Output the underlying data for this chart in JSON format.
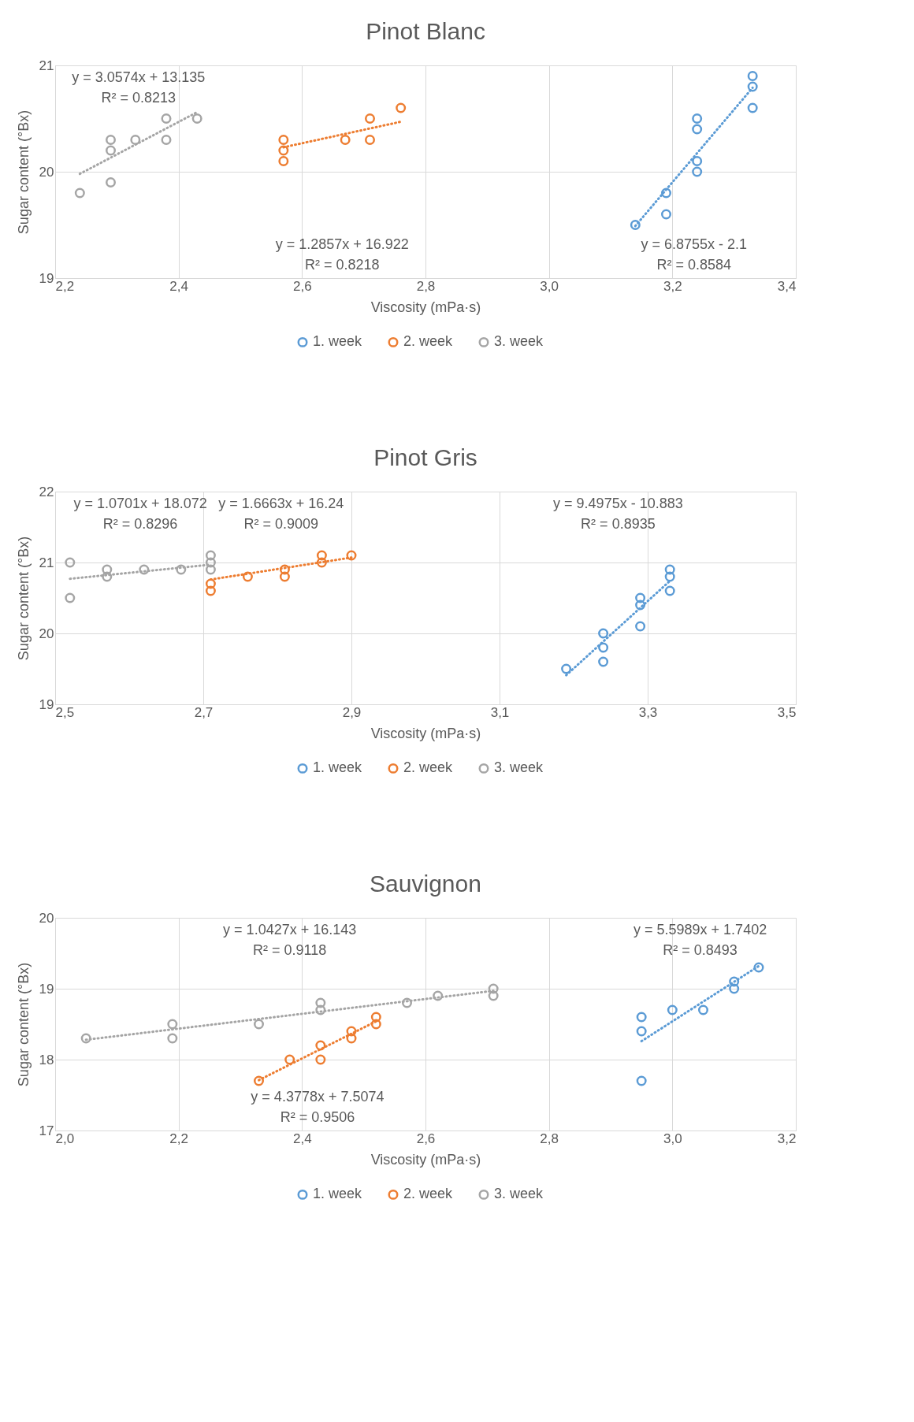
{
  "chart_data": [
    {
      "type": "scatter",
      "title": "Pinot Blanc",
      "xlabel": "Viscosity (mPa·s)",
      "ylabel": "Sugar content (°Bx)",
      "xlim": [
        2.2,
        3.4
      ],
      "ylim": [
        19,
        21
      ],
      "xticks": [
        {
          "value": 2.2,
          "label": "2,2"
        },
        {
          "value": 2.4,
          "label": "2,4"
        },
        {
          "value": 2.6,
          "label": "2,6"
        },
        {
          "value": 2.8,
          "label": "2,8"
        },
        {
          "value": 3.0,
          "label": "3,0"
        },
        {
          "value": 3.2,
          "label": "3,2"
        },
        {
          "value": 3.4,
          "label": "3,4"
        }
      ],
      "yticks": [
        19,
        20,
        21
      ],
      "grid": true,
      "legend": "bottom",
      "marker": "circle",
      "series": [
        {
          "name": "1. week",
          "color": "#5b9bd5",
          "x": [
            3.14,
            3.19,
            3.19,
            3.24,
            3.24,
            3.24,
            3.24,
            3.33,
            3.33,
            3.33
          ],
          "values": [
            19.5,
            19.6,
            19.8,
            20.0,
            20.1,
            20.4,
            20.5,
            20.6,
            20.8,
            20.9
          ]
        },
        {
          "name": "2. week",
          "color": "#ed7d31",
          "x": [
            2.57,
            2.57,
            2.57,
            2.67,
            2.71,
            2.71,
            2.76
          ],
          "values": [
            20.1,
            20.2,
            20.3,
            20.3,
            20.3,
            20.5,
            20.6
          ]
        },
        {
          "name": "3. week",
          "color": "#a5a5a5",
          "x": [
            2.24,
            2.29,
            2.29,
            2.29,
            2.33,
            2.38,
            2.38,
            2.43
          ],
          "values": [
            19.8,
            19.9,
            20.2,
            20.3,
            20.3,
            20.3,
            20.5,
            20.5
          ]
        },
        {
          "type": "line",
          "marker": "none",
          "line_style": "dotted",
          "color": "#a5a5a5",
          "x": [
            2.24,
            2.43
          ],
          "values": [
            19.98,
            20.56
          ]
        },
        {
          "type": "line",
          "marker": "none",
          "line_style": "dotted",
          "color": "#ed7d31",
          "x": [
            2.57,
            2.76
          ],
          "values": [
            20.23,
            20.47
          ]
        },
        {
          "type": "line",
          "marker": "none",
          "line_style": "dotted",
          "color": "#5b9bd5",
          "x": [
            3.14,
            3.33
          ],
          "values": [
            19.49,
            20.79
          ]
        }
      ],
      "annotations": [
        "y = 3.0574x + 13.135",
        "R² = 0.8213",
        "y = 1.2857x + 16.922",
        "R² = 0.8218",
        "y = 6.8755x - 2.1",
        "R² = 0.8584"
      ]
    },
    {
      "type": "scatter",
      "title": "Pinot Gris",
      "xlabel": "Viscosity (mPa·s)",
      "ylabel": "Sugar content (°Bx)",
      "xlim": [
        2.5,
        3.5
      ],
      "ylim": [
        19,
        22
      ],
      "xticks": [
        {
          "value": 2.5,
          "label": "2,5"
        },
        {
          "value": 2.7,
          "label": "2,7"
        },
        {
          "value": 2.9,
          "label": "2,9"
        },
        {
          "value": 3.1,
          "label": "3,1"
        },
        {
          "value": 3.3,
          "label": "3,3"
        },
        {
          "value": 3.5,
          "label": "3,5"
        }
      ],
      "yticks": [
        19,
        20,
        21,
        22
      ],
      "grid": true,
      "legend": "bottom",
      "marker": "circle",
      "series": [
        {
          "name": "1. week",
          "color": "#5b9bd5",
          "x": [
            3.19,
            3.24,
            3.24,
            3.24,
            3.29,
            3.29,
            3.29,
            3.33,
            3.33,
            3.33
          ],
          "values": [
            19.5,
            19.6,
            19.8,
            20.0,
            20.1,
            20.4,
            20.5,
            20.6,
            20.8,
            20.9
          ]
        },
        {
          "name": "2. week",
          "color": "#ed7d31",
          "x": [
            2.71,
            2.71,
            2.76,
            2.81,
            2.81,
            2.86,
            2.86,
            2.9
          ],
          "values": [
            20.6,
            20.7,
            20.8,
            20.8,
            20.9,
            21.0,
            21.1,
            21.1
          ]
        },
        {
          "name": "3. week",
          "color": "#a5a5a5",
          "x": [
            2.52,
            2.52,
            2.57,
            2.57,
            2.62,
            2.67,
            2.71,
            2.71,
            2.71
          ],
          "values": [
            20.5,
            21.0,
            20.8,
            20.9,
            20.9,
            20.9,
            20.9,
            21.0,
            21.1
          ]
        },
        {
          "type": "line",
          "marker": "none",
          "line_style": "dotted",
          "color": "#a5a5a5",
          "x": [
            2.52,
            2.71
          ],
          "values": [
            20.77,
            20.97
          ]
        },
        {
          "type": "line",
          "marker": "none",
          "line_style": "dotted",
          "color": "#ed7d31",
          "x": [
            2.71,
            2.9
          ],
          "values": [
            20.76,
            21.07
          ]
        },
        {
          "type": "line",
          "marker": "none",
          "line_style": "dotted",
          "color": "#5b9bd5",
          "x": [
            3.19,
            3.33
          ],
          "values": [
            19.41,
            20.74
          ]
        }
      ],
      "annotations": [
        "y = 1.0701x + 18.072",
        "R² = 0.8296",
        "y = 1.6663x + 16.24",
        "R² = 0.9009",
        "y = 9.4975x - 10.883",
        "R² = 0.8935"
      ]
    },
    {
      "type": "scatter",
      "title": "Sauvignon",
      "xlabel": "Viscosity (mPa·s)",
      "ylabel": "Sugar content (°Bx)",
      "xlim": [
        2.0,
        3.2
      ],
      "ylim": [
        17,
        20
      ],
      "xticks": [
        {
          "value": 2.0,
          "label": "2,0"
        },
        {
          "value": 2.2,
          "label": "2,2"
        },
        {
          "value": 2.4,
          "label": "2,4"
        },
        {
          "value": 2.6,
          "label": "2,6"
        },
        {
          "value": 2.8,
          "label": "2,8"
        },
        {
          "value": 3.0,
          "label": "3,0"
        },
        {
          "value": 3.2,
          "label": "3,2"
        }
      ],
      "yticks": [
        17,
        18,
        19,
        20
      ],
      "grid": true,
      "legend": "bottom",
      "marker": "circle",
      "series": [
        {
          "name": "1. week",
          "color": "#5b9bd5",
          "x": [
            2.95,
            2.95,
            2.95,
            3.0,
            3.05,
            3.1,
            3.1,
            3.14
          ],
          "values": [
            17.7,
            18.4,
            18.6,
            18.7,
            18.7,
            19.0,
            19.1,
            19.3
          ]
        },
        {
          "name": "2. week",
          "color": "#ed7d31",
          "x": [
            2.33,
            2.38,
            2.43,
            2.43,
            2.48,
            2.48,
            2.52,
            2.52
          ],
          "values": [
            17.7,
            18.0,
            18.0,
            18.2,
            18.3,
            18.4,
            18.5,
            18.6
          ]
        },
        {
          "name": "3. week",
          "color": "#a5a5a5",
          "x": [
            2.05,
            2.19,
            2.19,
            2.33,
            2.43,
            2.43,
            2.57,
            2.62,
            2.71,
            2.71
          ],
          "values": [
            18.3,
            18.3,
            18.5,
            18.5,
            18.7,
            18.8,
            18.8,
            18.9,
            18.9,
            19.0
          ]
        },
        {
          "type": "line",
          "marker": "none",
          "line_style": "dotted",
          "color": "#a5a5a5",
          "x": [
            2.05,
            2.71
          ],
          "values": [
            18.28,
            18.97
          ]
        },
        {
          "type": "line",
          "marker": "none",
          "line_style": "dotted",
          "color": "#ed7d31",
          "x": [
            2.33,
            2.52
          ],
          "values": [
            17.71,
            18.54
          ]
        },
        {
          "type": "line",
          "marker": "none",
          "line_style": "dotted",
          "color": "#5b9bd5",
          "x": [
            2.95,
            3.14
          ],
          "values": [
            18.26,
            19.32
          ]
        }
      ],
      "annotations": [
        "y = 1.0427x + 16.143",
        "R² = 0.9118",
        "y = 4.3778x + 7.5074",
        "R² = 0.9506",
        "y = 5.5989x + 1.7402",
        "R² = 0.8493"
      ]
    }
  ]
}
